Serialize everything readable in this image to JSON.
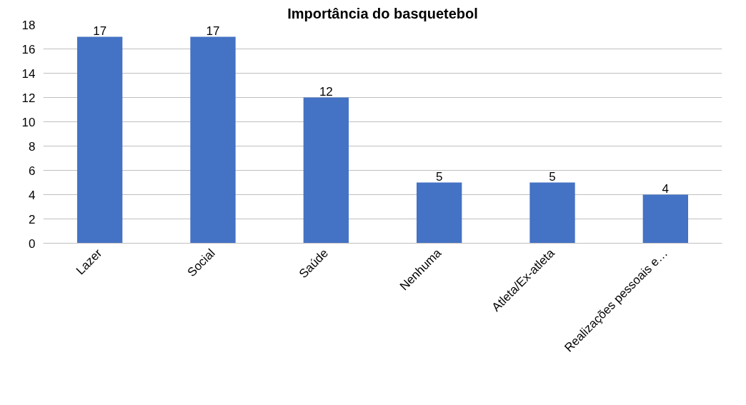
{
  "chart_data": {
    "type": "bar",
    "title": "Importância do basquetebol",
    "categories": [
      "Lazer",
      "Social",
      "Saúde",
      "Nenhuma",
      "Atleta/Ex-atleta",
      "Realizações pessoais e…"
    ],
    "values": [
      17,
      17,
      12,
      5,
      5,
      4
    ],
    "color": "#4472c4",
    "ylim": [
      0,
      18
    ],
    "yticks": [
      0,
      2,
      4,
      6,
      8,
      10,
      12,
      14,
      16,
      18
    ],
    "grid": "y",
    "data_labels": true
  }
}
